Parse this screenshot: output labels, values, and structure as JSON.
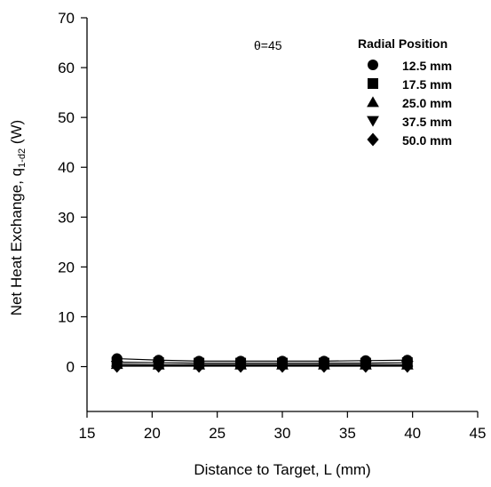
{
  "chart_data": {
    "type": "line",
    "title": "",
    "xlabel": "Distance to Target, L (mm)",
    "ylabel_main": "Net Heat Exchange, q",
    "ylabel_sub": "1-d2",
    "ylabel_unit": " (W)",
    "xlim": [
      15,
      45
    ],
    "ylim": [
      -9,
      70
    ],
    "xticks": [
      15,
      20,
      25,
      30,
      35,
      40,
      45
    ],
    "yticks": [
      0,
      10,
      20,
      30,
      40,
      50,
      60,
      70
    ],
    "grid": false,
    "annotation": "θ=45",
    "legend_title": "Radial Position",
    "legend_position": "top-right",
    "x": [
      17.3,
      20.5,
      23.6,
      26.8,
      30.0,
      33.2,
      36.4,
      39.6
    ],
    "series": [
      {
        "name": "12.5 mm",
        "marker": "circle",
        "values": [
          1.6,
          1.3,
          1.1,
          1.1,
          1.1,
          1.1,
          1.2,
          1.3
        ]
      },
      {
        "name": "17.5 mm",
        "marker": "square",
        "values": [
          0.9,
          0.8,
          0.7,
          0.7,
          0.7,
          0.7,
          0.7,
          0.8
        ]
      },
      {
        "name": "25.0 mm",
        "marker": "triangle-up",
        "values": [
          0.5,
          0.4,
          0.4,
          0.4,
          0.4,
          0.4,
          0.4,
          0.4
        ]
      },
      {
        "name": "37.5 mm",
        "marker": "triangle-down",
        "values": [
          0.2,
          0.2,
          0.2,
          0.2,
          0.2,
          0.2,
          0.2,
          0.2
        ]
      },
      {
        "name": "50.0 mm",
        "marker": "diamond",
        "values": [
          0.1,
          0.1,
          0.1,
          0.1,
          0.1,
          0.1,
          0.1,
          0.1
        ]
      }
    ],
    "colors": {
      "marker": "#000000",
      "line": "#000000",
      "axis": "#000000"
    }
  }
}
